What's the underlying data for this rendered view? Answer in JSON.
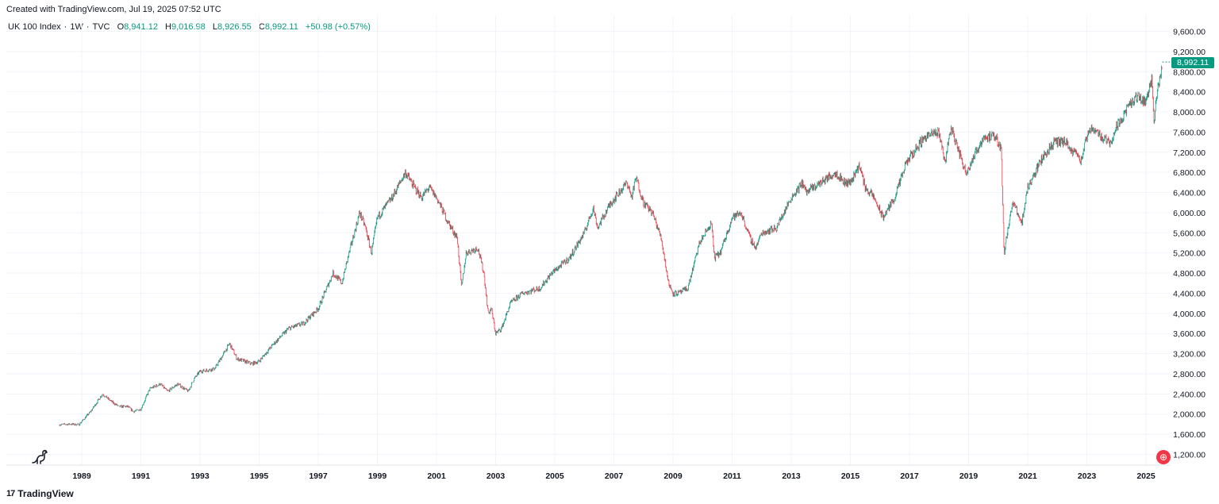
{
  "header": {
    "credit": "Created with TradingView.com, Jul 19, 2025 07:52 UTC"
  },
  "legend": {
    "symbol": "UK 100 Index",
    "interval": "1W",
    "source": "TVC",
    "open_label": "O",
    "open": "8,941.12",
    "high_label": "H",
    "high": "9,016.98",
    "low_label": "L",
    "low": "8,926.55",
    "close_label": "C",
    "close": "8,992.11",
    "change": "+50.98 (+0.57%)"
  },
  "price_tag": "8,992.11",
  "footer": {
    "brand": "TradingView",
    "brand_icon": "tradingview-logo-icon"
  },
  "icons": {
    "left": "dinosaur-icon",
    "right": "flag-icon"
  },
  "colors": {
    "up": "#089981",
    "down": "#f23645",
    "grid": "#f0f3fa",
    "axis_text": "#131722"
  },
  "chart_data": {
    "type": "candlestick",
    "symbol": "UK 100 Index",
    "interval": "1W",
    "x_ticks": [
      "1989",
      "1991",
      "1993",
      "1995",
      "1997",
      "1999",
      "2001",
      "2003",
      "2005",
      "2007",
      "2009",
      "2011",
      "2013",
      "2015",
      "2017",
      "2019",
      "2021",
      "2023",
      "2025"
    ],
    "y_ticks": [
      "1,200.00",
      "1,600.00",
      "2,000.00",
      "2,400.00",
      "2,800.00",
      "3,200.00",
      "3,600.00",
      "4,000.00",
      "4,400.00",
      "4,800.00",
      "5,200.00",
      "5,600.00",
      "6,000.00",
      "6,400.00",
      "6,800.00",
      "7,200.00",
      "7,600.00",
      "8,000.00",
      "8,400.00",
      "8,800.00",
      "9,200.00",
      "9,600.00"
    ],
    "x_range": [
      1988.0,
      2025.75
    ],
    "y_range": [
      1000,
      9800
    ],
    "grid": true,
    "last_close": 8992.11,
    "series": [
      {
        "anchors_x": [
          1988.25,
          1988.6,
          1988.9,
          1989.3,
          1989.7,
          1990.0,
          1990.25,
          1990.55,
          1990.75,
          1991.0,
          1991.3,
          1991.65,
          1991.9,
          1992.25,
          1992.6,
          1992.8,
          1993.0,
          1993.5,
          1994.0,
          1994.25,
          1994.5,
          1994.75,
          1995.0,
          1995.5,
          1996.0,
          1996.5,
          1997.0,
          1997.5,
          1997.8,
          1998.0,
          1998.4,
          1998.6,
          1998.8,
          1999.0,
          1999.5,
          1999.95,
          2000.25,
          2000.5,
          2000.75,
          2001.0,
          2001.4,
          2001.7,
          2001.85,
          2002.0,
          2002.4,
          2002.6,
          2002.75,
          2002.85,
          2003.0,
          2003.2,
          2003.5,
          2003.9,
          2004.5,
          2004.9,
          2005.5,
          2006.0,
          2006.3,
          2006.45,
          2006.9,
          2007.45,
          2007.6,
          2007.75,
          2008.0,
          2008.3,
          2008.6,
          2008.85,
          2009.0,
          2009.2,
          2009.5,
          2009.9,
          2010.3,
          2010.4,
          2010.6,
          2011.0,
          2011.3,
          2011.6,
          2011.8,
          2012.0,
          2012.5,
          2013.0,
          2013.4,
          2013.5,
          2014.0,
          2014.5,
          2014.8,
          2015.0,
          2015.3,
          2015.5,
          2015.8,
          2016.1,
          2016.5,
          2016.9,
          2017.5,
          2018.0,
          2018.2,
          2018.4,
          2018.9,
          2019.0,
          2019.5,
          2019.9,
          2020.1,
          2020.2,
          2020.3,
          2020.5,
          2020.8,
          2021.0,
          2021.5,
          2021.9,
          2022.3,
          2022.45,
          2022.7,
          2022.8,
          2023.0,
          2023.2,
          2023.5,
          2023.8,
          2024.0,
          2024.4,
          2024.7,
          2025.0,
          2025.2,
          2025.28,
          2025.35,
          2025.5,
          2025.55
        ],
        "anchors_y": [
          1790,
          1800,
          1790,
          2050,
          2400,
          2250,
          2150,
          2150,
          2050,
          2100,
          2500,
          2600,
          2450,
          2600,
          2450,
          2700,
          2850,
          2900,
          3400,
          3100,
          3050,
          3000,
          3050,
          3400,
          3700,
          3800,
          4100,
          4800,
          4600,
          5100,
          6000,
          5700,
          5200,
          5900,
          6300,
          6800,
          6500,
          6300,
          6500,
          6300,
          5800,
          5500,
          4500,
          5200,
          5300,
          4800,
          4000,
          4100,
          3600,
          3700,
          4200,
          4400,
          4500,
          4800,
          5100,
          5600,
          6100,
          5700,
          6200,
          6600,
          6300,
          6700,
          6200,
          6000,
          5500,
          4600,
          4400,
          4400,
          4500,
          5400,
          5800,
          5100,
          5200,
          5900,
          6000,
          5500,
          5300,
          5600,
          5700,
          6300,
          6600,
          6400,
          6600,
          6800,
          6600,
          6600,
          6950,
          6500,
          6300,
          5900,
          6300,
          7000,
          7500,
          7600,
          7000,
          7700,
          6800,
          6900,
          7500,
          7500,
          7300,
          5200,
          5600,
          6200,
          5800,
          6500,
          7100,
          7400,
          7400,
          7200,
          7200,
          7000,
          7500,
          7700,
          7500,
          7400,
          7700,
          8100,
          8300,
          8200,
          8700,
          7700,
          8300,
          8800,
          8995
        ]
      }
    ]
  }
}
